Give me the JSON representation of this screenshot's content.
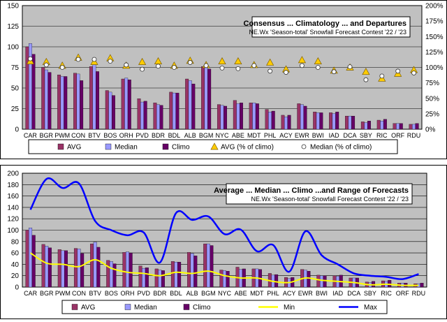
{
  "colors": {
    "plot_bg": "#c0c0c0",
    "avg": "#993366",
    "median": "#9999ff",
    "climo": "#660066",
    "min_line": "#ffff00",
    "max_line": "#0000ff",
    "avg_pct_fill": "#ffcc00",
    "median_pct_fill": "#ffffff"
  },
  "chart_data": [
    {
      "type": "bar",
      "title": "Consensus ... Climatology ... and Departures",
      "subtitle": "NE.Wx 'Season-total' Snowfall Forecast Contest  '22 / '23",
      "categories": [
        "CAR",
        "BGR",
        "PWM",
        "CON",
        "BTV",
        "BOS",
        "ORH",
        "PVD",
        "BDR",
        "BDL",
        "ALB",
        "BGM",
        "NYC",
        "ABE",
        "MDT",
        "PHL",
        "ACY",
        "EWR",
        "BWI",
        "IAD",
        "DCA",
        "SBY",
        "RIC",
        "ORF",
        "RDU"
      ],
      "ylim": [
        0,
        150
      ],
      "yticks": [
        0,
        25,
        50,
        75,
        100,
        125,
        150
      ],
      "y2lim": [
        0,
        200
      ],
      "y2ticks": [
        "0%",
        "25%",
        "50%",
        "75%",
        "100%",
        "125%",
        "150%",
        "175%",
        "200%"
      ],
      "series": [
        {
          "name": "AVG",
          "values": [
            100,
            75,
            66,
            68,
            76,
            47,
            61,
            37,
            32,
            45,
            61,
            76,
            30,
            35,
            32,
            24,
            17,
            31,
            21,
            20,
            16,
            9,
            11,
            7,
            6
          ]
        },
        {
          "name": "Median",
          "values": [
            104,
            72,
            64,
            67,
            79,
            45,
            62,
            33,
            30,
            44,
            59,
            76,
            29,
            31,
            32,
            21,
            15,
            30,
            20,
            19,
            16,
            8,
            10,
            7,
            6
          ]
        },
        {
          "name": "Climo",
          "values": [
            91,
            69,
            64,
            59,
            70,
            41,
            60,
            34,
            29,
            44,
            55,
            73,
            28,
            32,
            31,
            22,
            17,
            28,
            20,
            21,
            16,
            10,
            12,
            7,
            7
          ]
        },
        {
          "name": "AVG (% of climo)",
          "axis": "secondary",
          "values": [
            110,
            109,
            103,
            116,
            109,
            115,
            103,
            109,
            110,
            103,
            111,
            104,
            110,
            110,
            104,
            108,
            97,
            112,
            110,
            95,
            100,
            93,
            82,
            90,
            96
          ]
        },
        {
          "name": "Median (% of climo)",
          "axis": "secondary",
          "values": [
            114,
            104,
            100,
            113,
            113,
            110,
            104,
            97,
            102,
            100,
            108,
            103,
            99,
            98,
            103,
            94,
            92,
            103,
            100,
            93,
            101,
            80,
            86,
            94,
            91
          ]
        }
      ],
      "legend": [
        "AVG",
        "Median",
        "Climo",
        "AVG (% of climo)",
        "Median (% of climo)"
      ],
      "legend_position": "bottom"
    },
    {
      "type": "bar",
      "title": "Average ... Median ... Climo ...and Range of Forecasts",
      "subtitle": "NE.Wx 'Season-total' Snowfall Forecast Contest  '22 / '23",
      "categories": [
        "CAR",
        "BGR",
        "PWM",
        "CON",
        "BTV",
        "BOS",
        "ORH",
        "PVD",
        "BDR",
        "BDL",
        "ALB",
        "BGM",
        "NYC",
        "ABE",
        "MDT",
        "PHL",
        "ACY",
        "EWR",
        "BWI",
        "IAD",
        "DCA",
        "SBY",
        "RIC",
        "ORF",
        "RDU"
      ],
      "ylim": [
        0,
        200
      ],
      "yticks": [
        0,
        20,
        40,
        60,
        80,
        100,
        120,
        140,
        160,
        180,
        200
      ],
      "series": [
        {
          "name": "AVG",
          "values": [
            100,
            75,
            66,
            68,
            76,
            47,
            61,
            37,
            32,
            45,
            61,
            76,
            30,
            35,
            32,
            24,
            17,
            31,
            21,
            20,
            16,
            9,
            11,
            7,
            6
          ]
        },
        {
          "name": "Median",
          "values": [
            104,
            72,
            64,
            67,
            79,
            45,
            62,
            33,
            30,
            44,
            59,
            76,
            29,
            31,
            32,
            21,
            15,
            30,
            20,
            19,
            16,
            8,
            10,
            7,
            6
          ]
        },
        {
          "name": "Climo",
          "values": [
            91,
            69,
            64,
            59,
            70,
            41,
            60,
            34,
            29,
            44,
            55,
            73,
            28,
            32,
            31,
            22,
            17,
            28,
            20,
            21,
            16,
            10,
            12,
            7,
            7
          ]
        },
        {
          "name": "Min",
          "type": "line",
          "values": [
            60,
            42,
            40,
            36,
            48,
            33,
            26,
            24,
            20,
            26,
            24,
            28,
            20,
            16,
            16,
            10,
            8,
            16,
            12,
            10,
            8,
            4,
            5,
            3,
            3
          ]
        },
        {
          "name": "Max",
          "type": "line",
          "values": [
            136,
            190,
            174,
            182,
            116,
            100,
            91,
            96,
            43,
            130,
            118,
            124,
            93,
            101,
            63,
            74,
            27,
            98,
            56,
            40,
            24,
            20,
            18,
            14,
            23
          ]
        }
      ],
      "legend": [
        "AVG",
        "Median",
        "Climo",
        "Min",
        "Max"
      ],
      "legend_position": "bottom"
    }
  ]
}
